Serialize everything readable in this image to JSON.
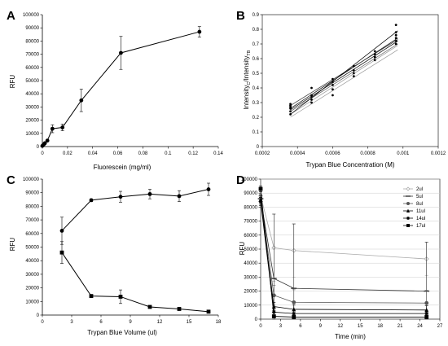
{
  "chart_data": [
    {
      "panel": "A",
      "type": "line",
      "xlabel": "Fluorescein (mg/ml)",
      "ylabel": "RFU",
      "xlim": [
        0,
        0.14
      ],
      "ylim": [
        0,
        100000
      ],
      "xticks": [
        "0",
        "0.02",
        "0.04",
        "0.06",
        "0.08",
        "0.1",
        "0.12",
        "0.14"
      ],
      "yticks": [
        "0",
        "10000",
        "20000",
        "30000",
        "40000",
        "50000",
        "60000",
        "70000",
        "80000",
        "90000",
        "100000"
      ],
      "series": [
        {
          "x": [
            0,
            0.001,
            0.002,
            0.004,
            0.008,
            0.016,
            0.031,
            0.0625,
            0.125
          ],
          "y": [
            500,
            1500,
            2500,
            4500,
            13500,
            14500,
            35000,
            71000,
            87000
          ],
          "err": [
            300,
            300,
            400,
            500,
            3000,
            2500,
            8500,
            12500,
            4000
          ],
          "marker": "circle"
        }
      ]
    },
    {
      "panel": "B",
      "type": "scatter",
      "xlabel": "Trypan Blue Concentration (M)",
      "ylabel": "Intensity",
      "ylabel_sub1": "C",
      "ylabel_mid": "/Intensity",
      "ylabel_sub2": "TB",
      "xlim": [
        0.0002,
        0.0012
      ],
      "ylim": [
        0,
        0.9
      ],
      "xticks": [
        "0.0002",
        "0.0004",
        "0.0006",
        "0.0008",
        "0.001",
        "0.0012"
      ],
      "yticks": [
        "0",
        "0.1",
        "0.2",
        "0.3",
        "0.4",
        "0.5",
        "0.6",
        "0.7",
        "0.8",
        "0.9"
      ],
      "points": [
        {
          "x": 0.00036,
          "y": 0.22
        },
        {
          "x": 0.00036,
          "y": 0.24
        },
        {
          "x": 0.00036,
          "y": 0.26
        },
        {
          "x": 0.00036,
          "y": 0.27
        },
        {
          "x": 0.00036,
          "y": 0.28
        },
        {
          "x": 0.00036,
          "y": 0.29
        },
        {
          "x": 0.00048,
          "y": 0.3
        },
        {
          "x": 0.00048,
          "y": 0.32
        },
        {
          "x": 0.00048,
          "y": 0.34
        },
        {
          "x": 0.00048,
          "y": 0.35
        },
        {
          "x": 0.00048,
          "y": 0.4
        },
        {
          "x": 0.0006,
          "y": 0.35
        },
        {
          "x": 0.0006,
          "y": 0.39
        },
        {
          "x": 0.0006,
          "y": 0.42
        },
        {
          "x": 0.0006,
          "y": 0.44
        },
        {
          "x": 0.0006,
          "y": 0.46
        },
        {
          "x": 0.00072,
          "y": 0.48
        },
        {
          "x": 0.00072,
          "y": 0.5
        },
        {
          "x": 0.00072,
          "y": 0.52
        },
        {
          "x": 0.00072,
          "y": 0.55
        },
        {
          "x": 0.00084,
          "y": 0.59
        },
        {
          "x": 0.00084,
          "y": 0.61
        },
        {
          "x": 0.00084,
          "y": 0.63
        },
        {
          "x": 0.00084,
          "y": 0.65
        },
        {
          "x": 0.00096,
          "y": 0.7
        },
        {
          "x": 0.00096,
          "y": 0.72
        },
        {
          "x": 0.00096,
          "y": 0.74
        },
        {
          "x": 0.00096,
          "y": 0.76
        },
        {
          "x": 0.00096,
          "y": 0.78
        },
        {
          "x": 0.00096,
          "y": 0.83
        }
      ],
      "fit_lines": [
        {
          "y0": 0.2,
          "y1": 0.66,
          "color": "#999999"
        },
        {
          "y0": 0.22,
          "y1": 0.69,
          "color": "#999999"
        },
        {
          "y0": 0.24,
          "y1": 0.7,
          "color": "#555555"
        },
        {
          "y0": 0.25,
          "y1": 0.72,
          "color": "#000000"
        },
        {
          "y0": 0.26,
          "y1": 0.74,
          "color": "#000000"
        },
        {
          "y0": 0.28,
          "y1": 0.73,
          "color": "#333333"
        },
        {
          "y0": 0.22,
          "y1": 0.79,
          "color": "#000000"
        }
      ],
      "fit_x": [
        0.00036,
        0.00097
      ]
    },
    {
      "panel": "C",
      "type": "line",
      "xlabel": "Trypan Blue Volume (ul)",
      "ylabel": "RFU",
      "xlim": [
        0,
        18
      ],
      "ylim": [
        0,
        100000
      ],
      "xticks": [
        "0",
        "3",
        "6",
        "9",
        "12",
        "15",
        "18"
      ],
      "yticks": [
        "0",
        "10000",
        "20000",
        "30000",
        "40000",
        "50000",
        "60000",
        "70000",
        "80000",
        "90000",
        "100000"
      ],
      "series": [
        {
          "x": [
            2,
            5,
            8,
            11,
            14,
            17
          ],
          "y": [
            62000,
            84500,
            87000,
            89000,
            87500,
            92500
          ],
          "err": [
            10000,
            1000,
            4000,
            3500,
            4000,
            4500
          ],
          "marker": "circle"
        },
        {
          "x": [
            2,
            5,
            8,
            11,
            14,
            17
          ],
          "y": [
            46000,
            14000,
            13500,
            6000,
            4500,
            2500
          ],
          "err": [
            8000,
            1000,
            5000,
            1000,
            500,
            500
          ],
          "marker": "square"
        }
      ]
    },
    {
      "panel": "D",
      "type": "line",
      "xlabel": "Time (min)",
      "ylabel": "RFU",
      "xlim": [
        0,
        27
      ],
      "ylim": [
        0,
        100000
      ],
      "xticks": [
        "0",
        "3",
        "6",
        "9",
        "12",
        "15",
        "18",
        "21",
        "24",
        "27"
      ],
      "yticks": [
        "0",
        "10000",
        "20000",
        "30000",
        "40000",
        "50000",
        "60000",
        "70000",
        "80000",
        "90000",
        "100000"
      ],
      "legend_position": "top-right",
      "series": [
        {
          "name": "2ul",
          "x": [
            0,
            2,
            5,
            25
          ],
          "y": [
            88000,
            51000,
            49000,
            43000
          ],
          "err": [
            3000,
            24000,
            19000,
            12000
          ],
          "marker": "diamond-open",
          "color": "#aaaaaa"
        },
        {
          "name": "5ul",
          "x": [
            0,
            2,
            5,
            25
          ],
          "y": [
            86000,
            29000,
            22000,
            20000
          ],
          "err": [
            3000,
            46000,
            46000,
            35000
          ],
          "marker": "dash",
          "color": "#333333"
        },
        {
          "name": "8ul",
          "x": [
            0,
            2,
            5,
            25
          ],
          "y": [
            86000,
            17000,
            12000,
            11500
          ],
          "err": [
            3000,
            7000,
            9000,
            9000
          ],
          "marker": "circle",
          "color": "#555555"
        },
        {
          "name": "11ul",
          "x": [
            0,
            2,
            5,
            25
          ],
          "y": [
            85000,
            9000,
            7000,
            6500
          ],
          "err": [
            3000,
            3000,
            3000,
            3000
          ],
          "marker": "triangle",
          "color": "#000000"
        },
        {
          "name": "14ul",
          "x": [
            0,
            2,
            5,
            25
          ],
          "y": [
            84000,
            5000,
            4000,
            4000
          ],
          "err": [
            3000,
            2000,
            2000,
            2000
          ],
          "marker": "star",
          "color": "#000000"
        },
        {
          "name": "17ul",
          "x": [
            0,
            2,
            5,
            25
          ],
          "y": [
            93000,
            2000,
            1500,
            1500
          ],
          "err": [
            2000,
            500,
            500,
            500
          ],
          "marker": "square",
          "color": "#000000"
        }
      ]
    }
  ]
}
